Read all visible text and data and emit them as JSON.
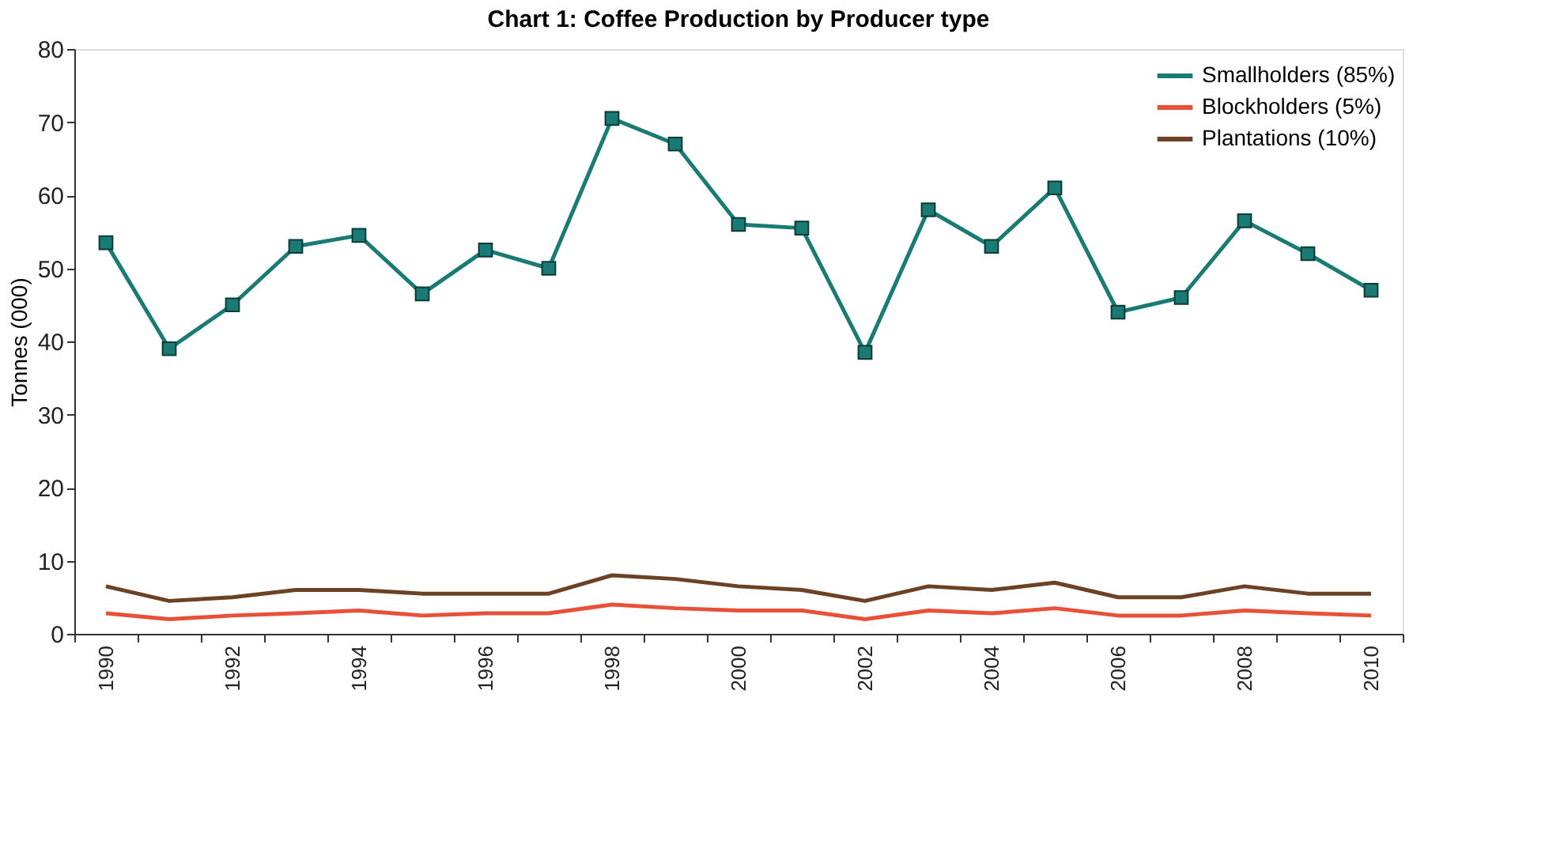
{
  "chart_data": {
    "type": "line",
    "title": "Chart 1: Coffee Production by Producer type",
    "ylabel": "Tonnes (000)",
    "categories": [
      "1990",
      null,
      "1992",
      null,
      "1994",
      null,
      "1996",
      null,
      "1998",
      null,
      "2000",
      null,
      "2002",
      null,
      "2004",
      null,
      "2006",
      null,
      "2008",
      null,
      "2010"
    ],
    "ylim": [
      0,
      80
    ],
    "yticks": [
      0,
      10,
      20,
      30,
      40,
      50,
      60,
      70,
      80
    ],
    "grid": false,
    "legend": "top right",
    "series": [
      {
        "name": "Smallholders (85%)",
        "color": "#1a7a74",
        "marker": "square",
        "values": [
          53.5,
          39,
          45,
          53,
          54.5,
          46.5,
          52.5,
          50,
          70.5,
          67,
          56,
          55.5,
          38.5,
          58,
          53,
          61,
          44,
          46,
          56.5,
          52,
          47
        ]
      },
      {
        "name": "Blockholders (5%)",
        "color": "#e8503a",
        "marker": "none",
        "values": [
          2.8,
          2,
          2.5,
          2.8,
          3.2,
          2.5,
          2.8,
          2.8,
          4,
          3.5,
          3.2,
          3.2,
          2,
          3.2,
          2.8,
          3.5,
          2.5,
          2.5,
          3.2,
          2.8,
          2.5
        ]
      },
      {
        "name": "Plantations (10%)",
        "color": "#6b4226",
        "marker": "none",
        "values": [
          6.5,
          4.5,
          5,
          6,
          6,
          5.5,
          5.5,
          5.5,
          8,
          7.5,
          6.5,
          6,
          4.5,
          6.5,
          6,
          7,
          5,
          5,
          6.5,
          5.5,
          5.5
        ]
      }
    ]
  }
}
